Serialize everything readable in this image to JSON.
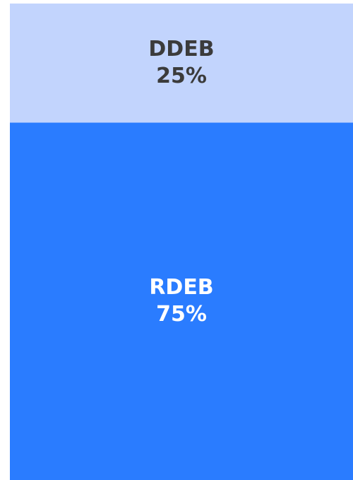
{
  "chart_data": {
    "type": "stacked_bar",
    "series": [
      {
        "name": "DDEB",
        "color": "#c2d4fd",
        "label_color": "#3b3b3b",
        "values": [
          25
        ],
        "value_labels": [
          "25%"
        ]
      },
      {
        "name": "RDEB",
        "color": "#2a7cff",
        "label_color": "#ffffff",
        "values": [
          75
        ],
        "value_labels": [
          "75%"
        ]
      }
    ]
  }
}
